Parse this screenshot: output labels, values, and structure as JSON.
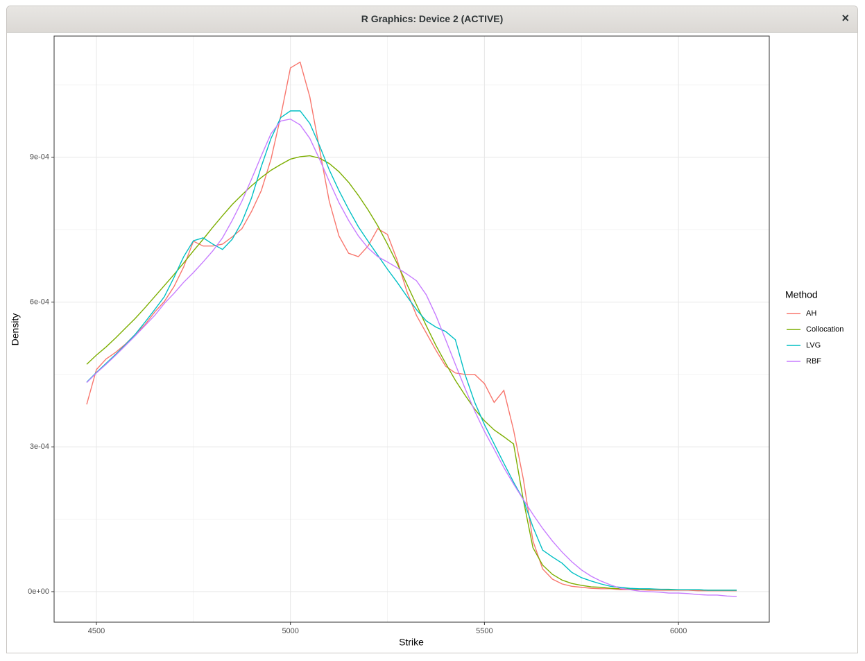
{
  "window": {
    "title": "R Graphics: Device 2 (ACTIVE)",
    "close": "×"
  },
  "chart_data": {
    "type": "line",
    "x_label": "Strike",
    "y_label": "Density",
    "x": [
      4475,
      4500,
      4525,
      4550,
      4575,
      4600,
      4625,
      4650,
      4675,
      4700,
      4725,
      4750,
      4775,
      4800,
      4825,
      4850,
      4875,
      4900,
      4925,
      4950,
      4975,
      5000,
      5025,
      5050,
      5075,
      5100,
      5125,
      5150,
      5175,
      5200,
      5225,
      5250,
      5275,
      5300,
      5325,
      5350,
      5375,
      5400,
      5425,
      5450,
      5475,
      5500,
      5525,
      5550,
      5575,
      5600,
      5625,
      5650,
      5675,
      5700,
      5725,
      5750,
      5775,
      5800,
      5825,
      5850,
      5875,
      5900,
      5925,
      5950,
      5975,
      6000,
      6025,
      6050,
      6075,
      6100,
      6125,
      6150
    ],
    "series": [
      {
        "name": "AH",
        "color": "#F8766D",
        "values": [
          0.000388,
          0.00046,
          0.000482,
          0.000496,
          0.000513,
          0.000533,
          0.000553,
          0.000579,
          0.000601,
          0.000632,
          0.000673,
          0.000726,
          0.000716,
          0.000716,
          0.00072,
          0.000735,
          0.000752,
          0.000788,
          0.000831,
          0.000896,
          0.000985,
          0.001085,
          0.001097,
          0.001025,
          0.000917,
          0.000809,
          0.000737,
          0.000701,
          0.000694,
          0.000716,
          0.000752,
          0.00074,
          0.000687,
          0.000622,
          0.000572,
          0.000536,
          0.0005,
          0.000467,
          0.000453,
          0.00045,
          0.00045,
          0.000431,
          0.000392,
          0.000417,
          0.000335,
          0.000234,
          0.000105,
          4.7e-05,
          2.6e-05,
          1.6e-05,
          1.1e-05,
          9e-06,
          7e-06,
          6e-06,
          6e-06,
          4e-06,
          4e-06,
          4e-06,
          3e-06,
          3e-06,
          3e-06,
          3e-06,
          3e-06,
          2e-06,
          2e-06,
          2e-06,
          2e-06,
          2e-06
        ]
      },
      {
        "name": "Collocation",
        "color": "#7CAE00",
        "values": [
          0.000471,
          0.00049,
          0.000507,
          0.000526,
          0.000546,
          0.000566,
          0.000588,
          0.000611,
          0.000634,
          0.000657,
          0.000681,
          0.000706,
          0.00073,
          0.000755,
          0.000779,
          0.000802,
          0.000822,
          0.000841,
          0.000858,
          0.000873,
          0.000885,
          0.000896,
          0.000901,
          0.000903,
          0.000898,
          0.000887,
          0.00087,
          0.000848,
          0.000821,
          0.000791,
          0.000758,
          0.00072,
          0.00068,
          0.000637,
          0.000594,
          0.000551,
          0.00051,
          0.000473,
          0.000438,
          0.000407,
          0.000378,
          0.000354,
          0.000335,
          0.000321,
          0.000306,
          0.000191,
          9.1e-05,
          5.5e-05,
          3.6e-05,
          2.4e-05,
          1.7e-05,
          1.3e-05,
          1e-05,
          9e-06,
          7e-06,
          6e-06,
          6e-06,
          5e-06,
          5e-06,
          5e-06,
          4e-06,
          4e-06,
          4e-06,
          4e-06,
          3e-06,
          3e-06,
          3e-06,
          3e-06
        ]
      },
      {
        "name": "LVG",
        "color": "#00BFC4",
        "values": [
          0.000434,
          0.000454,
          0.000473,
          0.000492,
          0.000512,
          0.000533,
          0.000558,
          0.000584,
          0.000611,
          0.000651,
          0.000694,
          0.000727,
          0.000733,
          0.00072,
          0.000709,
          0.00073,
          0.000766,
          0.000816,
          0.000881,
          0.000939,
          0.000982,
          0.000996,
          0.000996,
          0.00097,
          0.000924,
          0.000874,
          0.000831,
          0.000792,
          0.000756,
          0.000726,
          0.000697,
          0.000668,
          0.000641,
          0.000612,
          0.000584,
          0.000561,
          0.000548,
          0.000539,
          0.000522,
          0.00045,
          0.000392,
          0.000346,
          0.000306,
          0.000266,
          0.000227,
          0.000191,
          0.000134,
          8.6e-05,
          7.2e-05,
          5.9e-05,
          4e-05,
          2.9e-05,
          2.2e-05,
          1.6e-05,
          1.1e-05,
          9e-06,
          7e-06,
          6e-06,
          6e-06,
          5e-06,
          5e-06,
          4e-06,
          4e-06,
          4e-06,
          3e-06,
          3e-06,
          3e-06,
          3e-06
        ]
      },
      {
        "name": "RBF",
        "color": "#C77CFF",
        "values": [
          0.000433,
          0.000453,
          0.000471,
          0.00049,
          0.00051,
          0.00053,
          0.000551,
          0.000572,
          0.000597,
          0.000618,
          0.000641,
          0.000661,
          0.000683,
          0.000706,
          0.000733,
          0.000769,
          0.000809,
          0.000855,
          0.000903,
          0.000949,
          0.000975,
          0.000979,
          0.000967,
          0.000939,
          0.000896,
          0.00085,
          0.000806,
          0.000769,
          0.000737,
          0.000712,
          0.000694,
          0.000683,
          0.000671,
          0.000658,
          0.000644,
          0.000615,
          0.000572,
          0.000522,
          0.000471,
          0.000421,
          0.000374,
          0.000332,
          0.000295,
          0.000257,
          0.000223,
          0.000191,
          0.00016,
          0.000131,
          0.000105,
          8.2e-05,
          6.2e-05,
          4.5e-05,
          3.2e-05,
          2.2e-05,
          1.4e-05,
          7e-06,
          4e-06,
          1e-06,
          0,
          -1e-06,
          -3e-06,
          -3e-06,
          -4e-06,
          -6e-06,
          -7e-06,
          -7e-06,
          -9e-06,
          -1e-05
        ]
      }
    ],
    "xlim": [
      4391,
      6234
    ],
    "ylim": [
      -6.32e-05,
      0.001151
    ],
    "xticks": [
      4500,
      5000,
      5500,
      6000
    ],
    "yticks": [
      {
        "value": 0,
        "label": "0e+00"
      },
      {
        "value": 0.0003,
        "label": "3e-04"
      },
      {
        "value": 0.0006,
        "label": "6e-04"
      },
      {
        "value": 0.0009,
        "label": "9e-04"
      }
    ],
    "x_minor_grid": [
      4750,
      5250,
      5750
    ],
    "y_minor_grid": [
      0.00015,
      0.00045,
      0.00075,
      0.00105
    ],
    "grid": true,
    "legend_title": "Method",
    "legend_position": "right"
  }
}
